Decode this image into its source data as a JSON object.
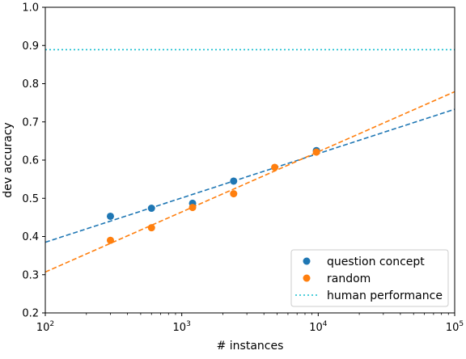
{
  "chart_data": {
    "type": "scatter",
    "xlabel": "# instances",
    "ylabel": "dev accuracy",
    "xscale": "log",
    "xlim": [
      100,
      100000
    ],
    "ylim": [
      0.2,
      1.0
    ],
    "x_ticks": [
      100,
      1000,
      10000,
      100000
    ],
    "x_tick_labels": [
      {
        "base": "10",
        "exp": "2"
      },
      {
        "base": "10",
        "exp": "3"
      },
      {
        "base": "10",
        "exp": "4"
      },
      {
        "base": "10",
        "exp": "5"
      }
    ],
    "y_ticks": [
      0.2,
      0.3,
      0.4,
      0.5,
      0.6,
      0.7,
      0.8,
      0.9,
      1.0
    ],
    "y_tick_labels": [
      "0.2",
      "0.3",
      "0.4",
      "0.5",
      "0.6",
      "0.7",
      "0.8",
      "0.9",
      "1.0"
    ],
    "grid": false,
    "legend_position": "lower-right",
    "series": [
      {
        "name": "question concept",
        "color": "#1f77b4",
        "x": [
          300,
          600,
          1200,
          2400,
          9700
        ],
        "y": [
          0.453,
          0.474,
          0.487,
          0.545,
          0.625
        ],
        "fit": {
          "x": [
            100,
            100000
          ],
          "y": [
            0.385,
            0.733
          ]
        }
      },
      {
        "name": "random",
        "color": "#ff7f0e",
        "x": [
          300,
          600,
          1200,
          2400,
          4800,
          9700
        ],
        "y": [
          0.39,
          0.423,
          0.476,
          0.512,
          0.581,
          0.621
        ],
        "fit": {
          "x": [
            100,
            100000
          ],
          "y": [
            0.307,
            0.779
          ]
        }
      }
    ],
    "reference_line": {
      "name": "human performance",
      "y": 0.889,
      "color": "#17becf"
    }
  }
}
